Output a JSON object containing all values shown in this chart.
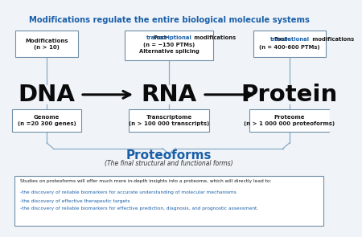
{
  "title": "Modifications regulate the entire biological molecule systems",
  "title_color": "#1a5fa8",
  "bg_color": "#f0f4f8",
  "border_color": "#a0b8cc",
  "box_edge_color": "#7090aa",
  "box_face_color": "#ffffff",
  "arrow_color": "#111111",
  "highlight_color": "#1a5fa8",
  "line_color": "#88aac8",
  "proteoforms_color": "#1a5fa8",
  "bottom_text_color": "#1a1a1a",
  "bullet_color": "#1a5fa8",
  "top_box1_text": "Modifications\n(n > 10)",
  "top_box2_line1": "Post-",
  "top_box2_highlight": "transcriptional",
  "top_box2_line1b": " modifications",
  "top_box2_line2": "(n = ~150 PTMs)",
  "top_box2_line3": "Alternative splicing",
  "top_box3_line1": "Post-",
  "top_box3_highlight": "translational",
  "top_box3_line1b": " modifications",
  "top_box3_line2": "(n = 400-600 PTMs)",
  "dna_label": "DNA",
  "rna_label": "RNA",
  "protein_label": "Protein",
  "bot_box1_text": "Genome\n(n =20 300 genes)",
  "bot_box2_text": "Transcriptome\n(n > 100 000 transcripts)",
  "bot_box3_text": "Proteome\n(n > 1 000 000 proteoforms)",
  "proteoforms_title": "Proteoforms",
  "proteoforms_subtitle": "(The final structural and functional forms)",
  "bottom_line0": "Studies on proteoforms will offer much more in-depth insights into a proteome, which will directly lead to:",
  "bottom_line1": "-the discovery of reliable biomarkers for accurate understanding of molecular mechanisms",
  "bottom_line2": "-the discovery of effective therapeutic targets",
  "bottom_line3": "-the discovery of reliable biomarkers for effective prediction, diagnosis, and prognostic assessment."
}
